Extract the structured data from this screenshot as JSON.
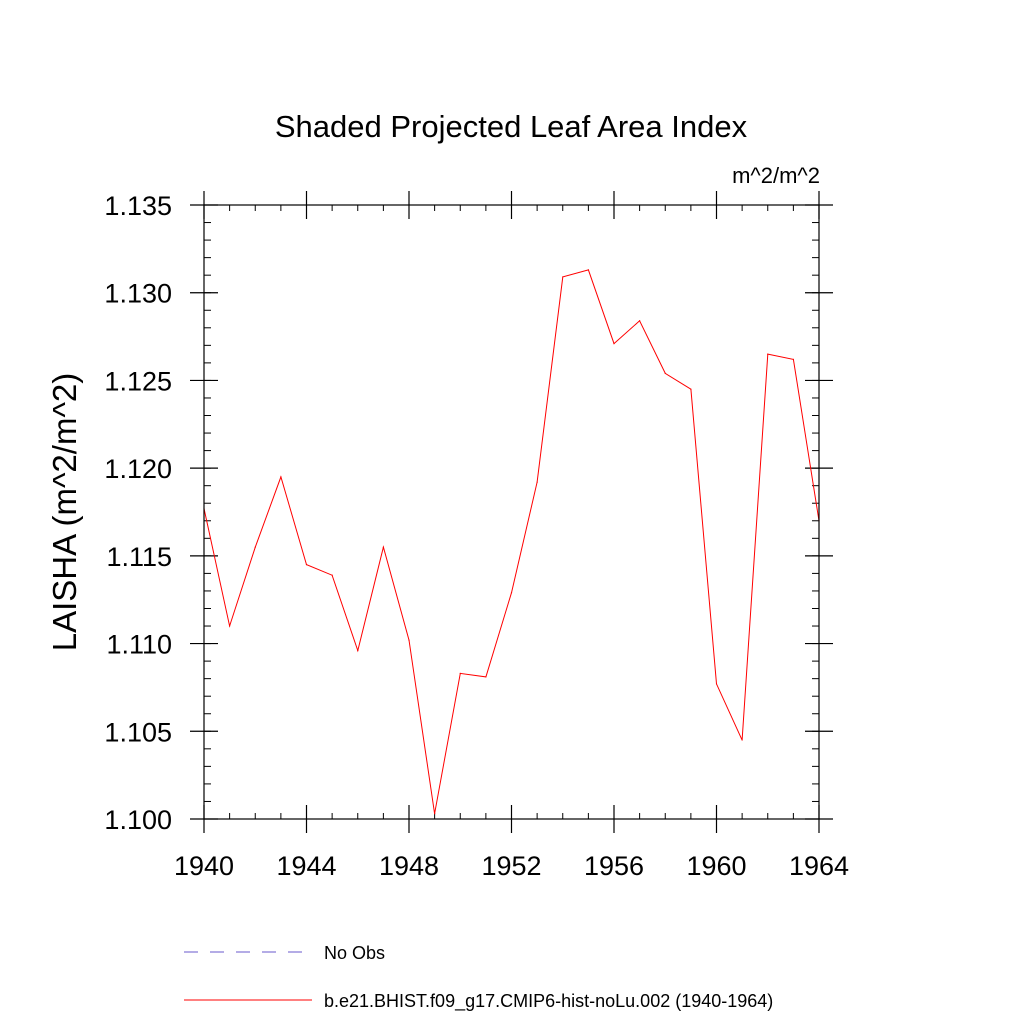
{
  "chart_data": {
    "type": "line",
    "title": "Shaded Projected Leaf Area Index",
    "units_label": "m^2/m^2",
    "ylabel": "LAISHA  (m^2/m^2)",
    "xlabel": "",
    "xlim": [
      1940,
      1964
    ],
    "ylim": [
      1.1,
      1.135
    ],
    "x_ticks": [
      "1940",
      "1944",
      "1948",
      "1952",
      "1956",
      "1960",
      "1964"
    ],
    "x_tick_values": [
      1940,
      1944,
      1948,
      1952,
      1956,
      1960,
      1964
    ],
    "y_ticks": [
      "1.100",
      "1.105",
      "1.110",
      "1.115",
      "1.120",
      "1.125",
      "1.130",
      "1.135"
    ],
    "y_tick_values": [
      1.1,
      1.105,
      1.11,
      1.115,
      1.12,
      1.125,
      1.13,
      1.135
    ],
    "grid": false,
    "legend_position": "bottom",
    "series": [
      {
        "name": "b.e21.BHIST.f09_g17.CMIP6-hist-noLu.002 (1940-1964)",
        "color": "#ff0000",
        "style": "solid",
        "x": [
          1940,
          1941,
          1942,
          1943,
          1944,
          1945,
          1946,
          1947,
          1948,
          1949,
          1950,
          1951,
          1952,
          1953,
          1954,
          1955,
          1956,
          1957,
          1958,
          1959,
          1960,
          1961,
          1962,
          1963,
          1964
        ],
        "values": [
          1.1177,
          1.111,
          1.1155,
          1.1195,
          1.1145,
          1.1139,
          1.1096,
          1.1155,
          1.1102,
          1.1003,
          1.1083,
          1.1081,
          1.1129,
          1.1192,
          1.1309,
          1.1313,
          1.1271,
          1.1284,
          1.1254,
          1.1245,
          1.1077,
          1.1045,
          1.1265,
          1.1262,
          1.117
        ]
      }
    ],
    "legend": [
      {
        "label": "No Obs",
        "color": "#6a5acd",
        "style": "dashed"
      },
      {
        "label": "b.e21.BHIST.f09_g17.CMIP6-hist-noLu.002 (1940-1964)",
        "color": "#ff0000",
        "style": "solid"
      }
    ]
  }
}
